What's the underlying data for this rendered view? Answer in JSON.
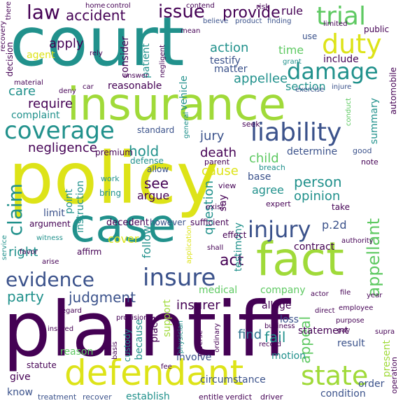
{
  "palette": {
    "dark_purple": "#440154",
    "indigo": "#3b528b",
    "teal": "#21918c",
    "green": "#5ec962",
    "yellow": "#dde318",
    "light_green": "#a0da39",
    "blue_teal": "#2c728e"
  },
  "words": [
    {
      "text": "policy",
      "color": "yellow"
    },
    {
      "text": "plaintiff",
      "color": "dark_purple"
    },
    {
      "text": "court",
      "color": "teal"
    },
    {
      "text": "insurance",
      "color": "light_green"
    },
    {
      "text": "case",
      "color": "teal"
    },
    {
      "text": "fact",
      "color": "light_green"
    },
    {
      "text": "defendant",
      "color": "yellow"
    },
    {
      "text": "trial",
      "color": "green"
    },
    {
      "text": "duty",
      "color": "yellow"
    },
    {
      "text": "coverage",
      "color": "teal"
    },
    {
      "text": "liability",
      "color": "indigo"
    },
    {
      "text": "damage",
      "color": "teal"
    },
    {
      "text": "state",
      "color": "light_green"
    },
    {
      "text": "injury",
      "color": "indigo"
    },
    {
      "text": "insure",
      "color": "indigo"
    },
    {
      "text": "evidence",
      "color": "indigo"
    },
    {
      "text": "issue",
      "color": "dark_purple"
    },
    {
      "text": "law",
      "color": "dark_purple"
    },
    {
      "text": "accident",
      "color": "dark_purple"
    },
    {
      "text": "provide",
      "color": "dark_purple"
    },
    {
      "text": "claim",
      "color": "teal"
    },
    {
      "text": "appellant",
      "color": "green"
    },
    {
      "text": "negligence",
      "color": "dark_purple"
    },
    {
      "text": "judgment",
      "color": "indigo"
    },
    {
      "text": "party",
      "color": "teal"
    },
    {
      "text": "insurer",
      "color": "dark_purple"
    },
    {
      "text": "fail",
      "color": "teal"
    },
    {
      "text": "find",
      "color": "blue_teal"
    },
    {
      "text": "appeal",
      "color": "green"
    },
    {
      "text": "act",
      "color": "dark_purple"
    },
    {
      "text": "person",
      "color": "teal"
    },
    {
      "text": "opinion",
      "color": "teal"
    },
    {
      "text": "hold",
      "color": "teal"
    },
    {
      "text": "see",
      "color": "dark_purple"
    },
    {
      "text": "right",
      "color": "teal"
    },
    {
      "text": "cause",
      "color": "yellow"
    },
    {
      "text": "jury",
      "color": "indigo"
    },
    {
      "text": "death",
      "color": "dark_purple"
    },
    {
      "text": "child",
      "color": "green"
    },
    {
      "text": "action",
      "color": "teal"
    },
    {
      "text": "appellee",
      "color": "teal"
    },
    {
      "text": "apply",
      "color": "dark_purple"
    },
    {
      "text": "agent",
      "color": "yellow"
    },
    {
      "text": "require",
      "color": "dark_purple"
    },
    {
      "text": "care",
      "color": "teal"
    },
    {
      "text": "time",
      "color": "green"
    },
    {
      "text": "rule",
      "color": "dark_purple"
    },
    {
      "text": "section",
      "color": "teal"
    },
    {
      "text": "testify",
      "color": "indigo"
    },
    {
      "text": "matter",
      "color": "indigo"
    },
    {
      "text": "include",
      "color": "dark_purple"
    },
    {
      "text": "contract",
      "color": "dark_purple"
    },
    {
      "text": "limit",
      "color": "indigo"
    },
    {
      "text": "follow",
      "color": "teal"
    },
    {
      "text": "cover",
      "color": "yellow"
    },
    {
      "text": "determine",
      "color": "indigo"
    },
    {
      "text": "argue",
      "color": "dark_purple"
    },
    {
      "text": "question",
      "color": "teal"
    },
    {
      "text": "agree",
      "color": "teal"
    },
    {
      "text": "base",
      "color": "indigo"
    },
    {
      "text": "say",
      "color": "dark_purple"
    },
    {
      "text": "p.2d",
      "color": "indigo"
    },
    {
      "text": "company",
      "color": "green"
    },
    {
      "text": "allege",
      "color": "dark_purple"
    },
    {
      "text": "result",
      "color": "indigo"
    },
    {
      "text": "condition",
      "color": "indigo"
    },
    {
      "text": "order",
      "color": "indigo"
    },
    {
      "text": "present",
      "color": "light_green"
    },
    {
      "text": "because",
      "color": "teal"
    },
    {
      "text": "place",
      "color": "dark_purple"
    },
    {
      "text": "support",
      "color": "light_green"
    },
    {
      "text": "involve",
      "color": "indigo"
    },
    {
      "text": "motion",
      "color": "teal"
    },
    {
      "text": "summary",
      "color": "teal"
    },
    {
      "text": "testimony",
      "color": "teal"
    },
    {
      "text": "instruction",
      "color": "teal"
    },
    {
      "text": "vehicle",
      "color": "teal"
    },
    {
      "text": "consider",
      "color": "dark_purple"
    },
    {
      "text": "patient",
      "color": "teal"
    },
    {
      "text": "reasonable",
      "color": "dark_purple"
    },
    {
      "text": "complaint",
      "color": "teal"
    },
    {
      "text": "standard",
      "color": "indigo"
    },
    {
      "text": "medical",
      "color": "green"
    },
    {
      "text": "statement",
      "color": "dark_purple"
    },
    {
      "text": "loss",
      "color": "indigo"
    },
    {
      "text": "reason",
      "color": "green"
    },
    {
      "text": "know",
      "color": "indigo"
    },
    {
      "text": "give",
      "color": "dark_purple"
    },
    {
      "text": "establish",
      "color": "teal"
    },
    {
      "text": "treatment",
      "color": "indigo"
    },
    {
      "text": "recover",
      "color": "indigo"
    },
    {
      "text": "entitle",
      "color": "dark_purple"
    },
    {
      "text": "verdict",
      "color": "dark_purple"
    },
    {
      "text": "driver",
      "color": "dark_purple"
    },
    {
      "text": "circumstance",
      "color": "indigo"
    },
    {
      "text": "use",
      "color": "indigo"
    },
    {
      "text": "public",
      "color": "dark_purple"
    },
    {
      "text": "decision",
      "color": "dark_purple"
    },
    {
      "text": "point",
      "color": "teal"
    },
    {
      "text": "decedent",
      "color": "dark_purple"
    },
    {
      "text": "argument",
      "color": "dark_purple"
    },
    {
      "text": "affirm",
      "color": "dark_purple"
    },
    {
      "text": "however",
      "color": "indigo"
    },
    {
      "text": "sufficient",
      "color": "dark_purple"
    },
    {
      "text": "effect",
      "color": "dark_purple"
    },
    {
      "text": "defense",
      "color": "teal"
    },
    {
      "text": "allow",
      "color": "indigo"
    },
    {
      "text": "bring",
      "color": "teal"
    },
    {
      "text": "work",
      "color": "teal"
    },
    {
      "text": "premium",
      "color": "dark_purple"
    },
    {
      "text": "parent",
      "color": "dark_purple"
    },
    {
      "text": "view",
      "color": "dark_purple"
    },
    {
      "text": "exist",
      "color": "dark_purple"
    },
    {
      "text": "expert",
      "color": "dark_purple"
    },
    {
      "text": "take",
      "color": "dark_purple"
    },
    {
      "text": "good",
      "color": "indigo"
    },
    {
      "text": "note",
      "color": "dark_purple"
    },
    {
      "text": "breach",
      "color": "teal"
    },
    {
      "text": "seek",
      "color": "dark_purple"
    },
    {
      "text": "home",
      "color": "dark_purple"
    },
    {
      "text": "control",
      "color": "dark_purple"
    },
    {
      "text": "contend",
      "color": "dark_purple"
    },
    {
      "text": "risk",
      "color": "dark_purple"
    },
    {
      "text": "believe",
      "color": "indigo"
    },
    {
      "text": "product",
      "color": "indigo"
    },
    {
      "text": "finding",
      "color": "indigo"
    },
    {
      "text": "mean",
      "color": "dark_purple"
    },
    {
      "text": "grant",
      "color": "teal"
    },
    {
      "text": "answer",
      "color": "dark_purple"
    },
    {
      "text": "material",
      "color": "dark_purple"
    },
    {
      "text": "deny",
      "color": "dark_purple"
    },
    {
      "text": "car",
      "color": "dark_purple"
    },
    {
      "text": "exercise",
      "color": "indigo"
    },
    {
      "text": "injure",
      "color": "indigo"
    },
    {
      "text": "automobile",
      "color": "dark_purple"
    },
    {
      "text": "conduct",
      "color": "green"
    },
    {
      "text": "rely",
      "color": "dark_purple"
    },
    {
      "text": "negligent",
      "color": "dark_purple"
    },
    {
      "text": "general",
      "color": "teal"
    },
    {
      "text": "service",
      "color": "teal"
    },
    {
      "text": "favor",
      "color": "dark_purple"
    },
    {
      "text": "arise",
      "color": "dark_purple"
    },
    {
      "text": "witness",
      "color": "teal"
    },
    {
      "text": "application",
      "color": "yellow"
    },
    {
      "text": "shall",
      "color": "dark_purple"
    },
    {
      "text": "authority",
      "color": "dark_purple"
    },
    {
      "text": "year",
      "color": "dark_purple"
    },
    {
      "text": "file",
      "color": "dark_purple"
    },
    {
      "text": "employee",
      "color": "dark_purple"
    },
    {
      "text": "purpose",
      "color": "dark_purple"
    },
    {
      "text": "direct",
      "color": "dark_purple"
    },
    {
      "text": "pay",
      "color": "dark_purple"
    },
    {
      "text": "supra",
      "color": "dark_purple"
    },
    {
      "text": "record",
      "color": "dark_purple"
    },
    {
      "text": "business",
      "color": "dark_purple"
    },
    {
      "text": "cite",
      "color": "dark_purple"
    },
    {
      "text": "ordinary",
      "color": "dark_purple"
    },
    {
      "text": "physician",
      "color": "teal"
    },
    {
      "text": "custody",
      "color": "teal"
    },
    {
      "text": "basis",
      "color": "dark_purple"
    },
    {
      "text": "provision",
      "color": "dark_purple"
    },
    {
      "text": "insured",
      "color": "dark_purple"
    },
    {
      "text": "statute",
      "color": "dark_purple"
    },
    {
      "text": "operation",
      "color": "dark_purple"
    },
    {
      "text": "actor",
      "color": "dark_purple"
    },
    {
      "text": "there",
      "color": "dark_purple"
    },
    {
      "text": "recovery",
      "color": "dark_purple"
    },
    {
      "text": "regard",
      "color": "dark_purple"
    },
    {
      "text": "fee",
      "color": "dark_purple"
    },
    {
      "text": "limited",
      "color": "dark_purple"
    },
    {
      "text": "reverse",
      "color": "dark_purple"
    }
  ]
}
